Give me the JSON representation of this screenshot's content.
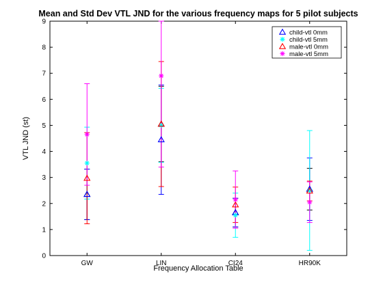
{
  "chart_data": {
    "type": "errorbar",
    "title": "Mean and Std Dev VTL JND for the various frequency maps for 5 pilot subjects",
    "xlabel": "Frequency Allocation Table",
    "ylabel": "VTL JND (st)",
    "ylim": [
      0,
      9
    ],
    "yticks": [
      "0",
      "1",
      "2",
      "3",
      "4",
      "5",
      "6",
      "7",
      "8",
      "9"
    ],
    "categories": [
      "GW",
      "LIN",
      "CI24",
      "HR90K"
    ],
    "legend_position": "top-right",
    "series": [
      {
        "name": "child-vtl 0mm",
        "marker": "triangle",
        "color": "#0000ff",
        "mean": [
          2.35,
          4.45,
          1.65,
          2.55
        ],
        "std": [
          0.97,
          2.1,
          0.55,
          1.2
        ]
      },
      {
        "name": "child-vtl 5mm",
        "marker": "asterisk",
        "color": "#00ffff",
        "mean": [
          3.55,
          5.0,
          1.55,
          2.5
        ],
        "std": [
          1.38,
          1.42,
          0.85,
          2.3
        ]
      },
      {
        "name": "male-vtl 0mm",
        "marker": "triangle",
        "color": "#ff0000",
        "mean": [
          2.97,
          5.05,
          1.95,
          2.48
        ],
        "std": [
          1.75,
          2.4,
          0.68,
          0.38
        ]
      },
      {
        "name": "male-vtl 5mm",
        "marker": "asterisk",
        "color": "#ff00ff",
        "mean": [
          4.65,
          6.9,
          2.15,
          2.05
        ],
        "std": [
          1.95,
          3.5,
          1.1,
          0.78
        ]
      }
    ],
    "overlay_markers": [
      {
        "name": "black",
        "marker": "triangle",
        "color": "#000000",
        "mean": [
          2.35,
          5.05,
          1.65,
          2.55
        ],
        "std": [
          0.97,
          1.45,
          0.55,
          0.8
        ]
      }
    ]
  }
}
